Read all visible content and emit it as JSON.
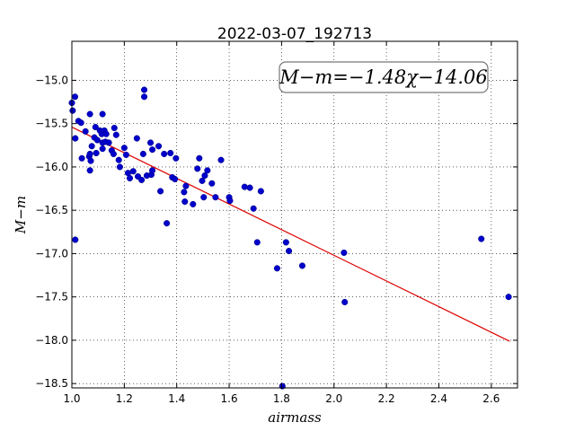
{
  "chart_data": {
    "type": "scatter",
    "title": "2022-03-07_192713",
    "xlabel": "airmass",
    "ylabel": "M−m",
    "annotation": "M−m=−1.48χ−14.06",
    "xlim": [
      1.0,
      2.7
    ],
    "ylim": [
      -18.55,
      -14.55
    ],
    "xticks": [
      1.0,
      1.2,
      1.4,
      1.6,
      1.8,
      2.0,
      2.2,
      2.4,
      2.6
    ],
    "xtick_labels": [
      "1.0",
      "1.2",
      "1.4",
      "1.6",
      "1.8",
      "2.0",
      "2.2",
      "2.4",
      "2.6"
    ],
    "yticks": [
      -15.0,
      -15.5,
      -16.0,
      -16.5,
      -17.0,
      -17.5,
      -18.0,
      -18.5
    ],
    "ytick_labels": [
      "−15.0",
      "−15.5",
      "−16.0",
      "−16.5",
      "−17.0",
      "−17.5",
      "−18.0",
      "−18.5"
    ],
    "grid": true,
    "fit_line": {
      "slope": -1.48,
      "intercept": -14.06,
      "x_range": [
        1.0,
        2.67
      ],
      "color": "#dd0000"
    },
    "point_color": "#0000cc",
    "points": [
      [
        1.0,
        -15.26
      ],
      [
        1.003,
        -15.35
      ],
      [
        1.012,
        -15.19
      ],
      [
        1.013,
        -15.67
      ],
      [
        1.013,
        -16.84
      ],
      [
        1.025,
        -15.47
      ],
      [
        1.035,
        -15.49
      ],
      [
        1.038,
        -15.9
      ],
      [
        1.052,
        -15.59
      ],
      [
        1.066,
        -15.88
      ],
      [
        1.069,
        -15.39
      ],
      [
        1.069,
        -15.85
      ],
      [
        1.069,
        -16.04
      ],
      [
        1.072,
        -15.93
      ],
      [
        1.076,
        -15.76
      ],
      [
        1.086,
        -15.66
      ],
      [
        1.09,
        -15.54
      ],
      [
        1.093,
        -15.84
      ],
      [
        1.097,
        -15.69
      ],
      [
        1.107,
        -15.58
      ],
      [
        1.114,
        -15.62
      ],
      [
        1.117,
        -15.39
      ],
      [
        1.117,
        -15.72
      ],
      [
        1.117,
        -15.79
      ],
      [
        1.124,
        -15.58
      ],
      [
        1.128,
        -15.71
      ],
      [
        1.131,
        -15.62
      ],
      [
        1.141,
        -15.72
      ],
      [
        1.152,
        -15.81
      ],
      [
        1.159,
        -15.85
      ],
      [
        1.162,
        -15.55
      ],
      [
        1.169,
        -15.63
      ],
      [
        1.179,
        -15.92
      ],
      [
        1.183,
        -16.0
      ],
      [
        1.2,
        -15.78
      ],
      [
        1.207,
        -15.86
      ],
      [
        1.214,
        -16.07
      ],
      [
        1.221,
        -16.13
      ],
      [
        1.234,
        -16.05
      ],
      [
        1.248,
        -15.67
      ],
      [
        1.252,
        -16.11
      ],
      [
        1.266,
        -16.15
      ],
      [
        1.272,
        -15.85
      ],
      [
        1.276,
        -15.11
      ],
      [
        1.276,
        -15.19
      ],
      [
        1.286,
        -16.1
      ],
      [
        1.3,
        -15.72
      ],
      [
        1.303,
        -16.09
      ],
      [
        1.307,
        -16.04
      ],
      [
        1.307,
        -15.8
      ],
      [
        1.331,
        -15.76
      ],
      [
        1.338,
        -16.28
      ],
      [
        1.352,
        -15.85
      ],
      [
        1.362,
        -16.65
      ],
      [
        1.376,
        -15.84
      ],
      [
        1.383,
        -16.12
      ],
      [
        1.393,
        -16.14
      ],
      [
        1.397,
        -15.9
      ],
      [
        1.428,
        -16.29
      ],
      [
        1.431,
        -16.4
      ],
      [
        1.435,
        -16.22
      ],
      [
        1.462,
        -16.43
      ],
      [
        1.479,
        -16.02
      ],
      [
        1.486,
        -15.9
      ],
      [
        1.497,
        -16.16
      ],
      [
        1.503,
        -16.35
      ],
      [
        1.507,
        -16.1
      ],
      [
        1.517,
        -16.04
      ],
      [
        1.534,
        -16.19
      ],
      [
        1.548,
        -16.35
      ],
      [
        1.569,
        -15.92
      ],
      [
        1.6,
        -16.35
      ],
      [
        1.603,
        -16.39
      ],
      [
        1.659,
        -16.23
      ],
      [
        1.679,
        -16.24
      ],
      [
        1.693,
        -16.48
      ],
      [
        1.707,
        -16.87
      ],
      [
        1.721,
        -16.28
      ],
      [
        1.783,
        -17.17
      ],
      [
        1.803,
        -18.53
      ],
      [
        1.817,
        -16.87
      ],
      [
        1.828,
        -16.97
      ],
      [
        1.879,
        -17.14
      ],
      [
        2.038,
        -16.99
      ],
      [
        2.041,
        -17.56
      ],
      [
        2.562,
        -16.83
      ],
      [
        2.666,
        -17.5
      ]
    ]
  }
}
